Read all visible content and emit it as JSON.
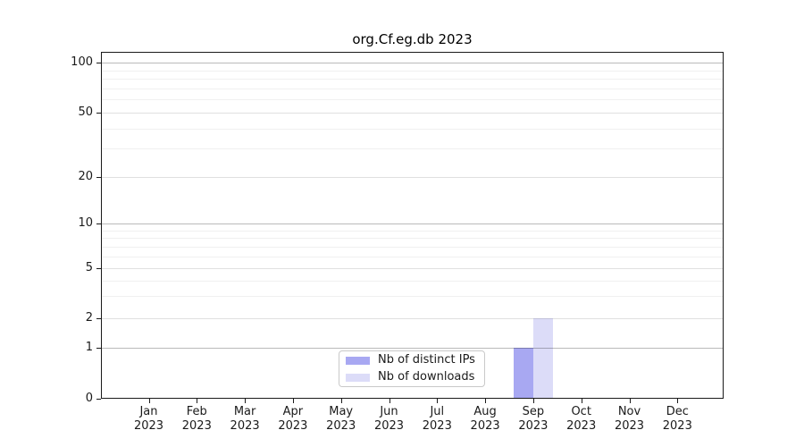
{
  "chart_data": {
    "type": "bar",
    "title": "org.Cf.eg.db 2023",
    "categories": [
      "Jan",
      "Feb",
      "Mar",
      "Apr",
      "May",
      "Jun",
      "Jul",
      "Aug",
      "Sep",
      "Oct",
      "Nov",
      "Dec"
    ],
    "year_label": "2023",
    "series": [
      {
        "name": "Nb of distinct IPs",
        "color": "#a8a8f2",
        "values": [
          0,
          0,
          0,
          0,
          0,
          0,
          0,
          0,
          1,
          0,
          0,
          0
        ]
      },
      {
        "name": "Nb of downloads",
        "color": "#dcdcf8",
        "values": [
          0,
          0,
          0,
          0,
          0,
          0,
          0,
          0,
          2,
          0,
          0,
          0
        ]
      }
    ],
    "y_ticks": [
      0,
      1,
      2,
      5,
      10,
      20,
      50,
      100
    ],
    "y_major_gridlines": [
      1,
      10,
      100
    ],
    "y_secondary_gridlines": [
      2,
      5,
      20,
      50
    ],
    "y_minor_gridlines": [
      3,
      4,
      6,
      7,
      8,
      9,
      30,
      40,
      60,
      70,
      80,
      90
    ],
    "ylim": [
      0,
      113
    ],
    "yscale": "log-like",
    "xlabel": "",
    "ylabel": "",
    "grid": "horizontal",
    "legend_position": "bottom-center-inside",
    "colors": {
      "distinct_ips_bar": "#a8a8f2",
      "downloads_bar": "#dcdcf8",
      "grid_major": "#bababa",
      "grid_secondary": "#e0e0e0",
      "grid_minor": "#f0f0f0",
      "frame": "#1a1a1a",
      "background": "#ffffff"
    }
  }
}
